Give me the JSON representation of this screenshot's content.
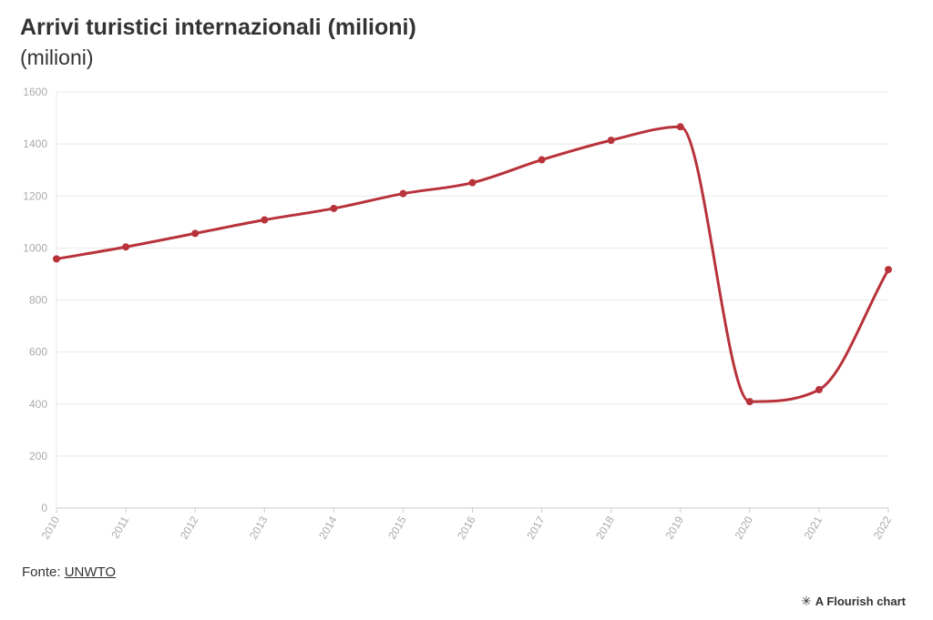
{
  "chart_data": {
    "type": "line",
    "title": "Arrivi turistici internazionali (milioni)",
    "subtitle": "(milioni)",
    "x": [
      "2010",
      "2011",
      "2012",
      "2013",
      "2014",
      "2015",
      "2016",
      "2017",
      "2018",
      "2019",
      "2020",
      "2021",
      "2022"
    ],
    "series": [
      {
        "values": [
          958,
          1004,
          1056,
          1108,
          1152,
          1209,
          1251,
          1339,
          1414,
          1466,
          409,
          455,
          917
        ]
      }
    ],
    "y_ticks": [
      "0",
      "200",
      "400",
      "600",
      "800",
      "1000",
      "1200",
      "1400",
      "1600"
    ],
    "ylim": [
      0,
      1600
    ],
    "grid": true,
    "line_color": "#b8323a",
    "grid_color": "#e8e8e8",
    "axis_color": "#cccccc"
  },
  "source": {
    "label": "Fonte:",
    "link_text": "UNWTO"
  },
  "credit": {
    "icon": "flourish-star-icon",
    "text": "A Flourish chart"
  }
}
